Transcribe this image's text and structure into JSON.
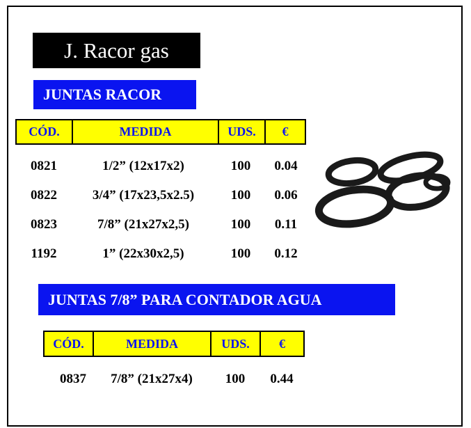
{
  "header": {
    "title": "J. Racor gas"
  },
  "sections": [
    {
      "title": "JUNTAS RACOR",
      "table": {
        "columns": [
          "CÓD.",
          "MEDIDA",
          "UDS.",
          "€"
        ],
        "rows": [
          [
            "0821",
            "1/2” (12x17x2)",
            "100",
            "0.04"
          ],
          [
            "0822",
            "3/4” (17x23,5x2.5)",
            "100",
            "0.06"
          ],
          [
            "0823",
            "7/8” (21x27x2,5)",
            "100",
            "0.11"
          ],
          [
            "1192",
            "1” (22x30x2,5)",
            "100",
            "0.12"
          ]
        ]
      }
    },
    {
      "title": "JUNTAS 7/8” PARA CONTADOR AGUA",
      "table": {
        "columns": [
          "CÓD.",
          "MEDIDA",
          "UDS.",
          "€"
        ],
        "rows": [
          [
            "0837",
            "7/8” (21x27x4)",
            "100",
            "0.44"
          ]
        ]
      }
    }
  ]
}
